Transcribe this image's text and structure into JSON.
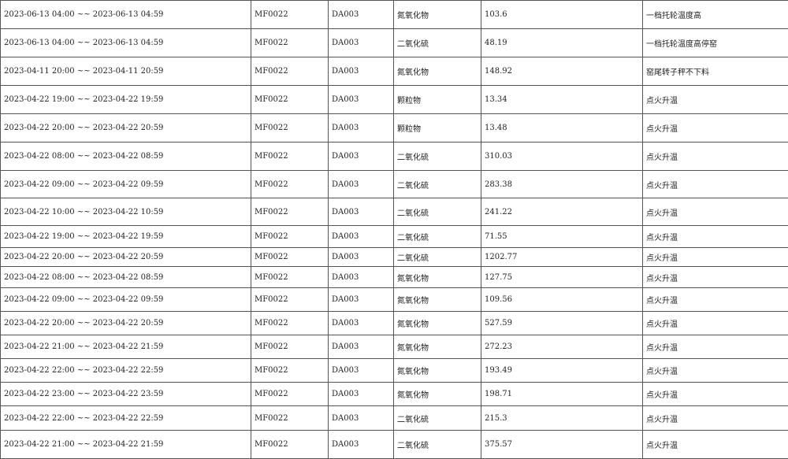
{
  "rows": [
    {
      "period": "2023-06-13 04:00 ~~ 2023-06-13 04:59",
      "code": "MF0022",
      "device": "DA003",
      "pollutant": "氮氧化物",
      "value": "103.6",
      "reason": "一档托轮温度高"
    },
    {
      "period": "2023-06-13 04:00 ~~ 2023-06-13 04:59",
      "code": "MF0022",
      "device": "DA003",
      "pollutant": "二氧化硫",
      "value": "48.19",
      "reason": "一档托轮温度高停窑"
    },
    {
      "period": "2023-04-11 20:00 ~~ 2023-04-11 20:59",
      "code": "MF0022",
      "device": "DA003",
      "pollutant": "氮氧化物",
      "value": "148.92",
      "reason": "窑尾转子秤不下料"
    },
    {
      "period": "2023-04-22 19:00 ~~ 2023-04-22 19:59",
      "code": "MF0022",
      "device": "DA003",
      "pollutant": "颗粒物",
      "value": "13.34",
      "reason": "点火升温"
    },
    {
      "period": "2023-04-22 20:00 ~~ 2023-04-22 20:59",
      "code": "MF0022",
      "device": "DA003",
      "pollutant": "颗粒物",
      "value": "13.48",
      "reason": "点火升温"
    },
    {
      "period": "2023-04-22 08:00 ~~ 2023-04-22 08:59",
      "code": "MF0022",
      "device": "DA003",
      "pollutant": "二氧化硫",
      "value": "310.03",
      "reason": "点火升温"
    },
    {
      "period": "2023-04-22 09:00 ~~ 2023-04-22 09:59",
      "code": "MF0022",
      "device": "DA003",
      "pollutant": "二氧化硫",
      "value": "283.38",
      "reason": "点火升温"
    },
    {
      "period": "2023-04-22 10:00 ~~ 2023-04-22 10:59",
      "code": "MF0022",
      "device": "DA003",
      "pollutant": "二氧化硫",
      "value": "241.22",
      "reason": "点火升温"
    },
    {
      "period": "2023-04-22 19:00 ~~ 2023-04-22 19:59",
      "code": "MF0022",
      "device": "DA003",
      "pollutant": "二氧化硫",
      "value": "71.55",
      "reason": "点火升温"
    },
    {
      "period": "2023-04-22 20:00 ~~ 2023-04-22 20:59",
      "code": "MF0022",
      "device": "DA003",
      "pollutant": "二氧化硫",
      "value": "1202.77",
      "reason": "点火升温"
    },
    {
      "period": "2023-04-22 08:00 ~~ 2023-04-22 08:59",
      "code": "MF0022",
      "device": "DA003",
      "pollutant": "氮氧化物",
      "value": "127.75",
      "reason": "点火升温"
    },
    {
      "period": "2023-04-22 09:00 ~~ 2023-04-22 09:59",
      "code": "MF0022",
      "device": "DA003",
      "pollutant": "氮氧化物",
      "value": "109.56",
      "reason": "点火升温"
    },
    {
      "period": "2023-04-22 20:00 ~~ 2023-04-22 20:59",
      "code": "MF0022",
      "device": "DA003",
      "pollutant": "氮氧化物",
      "value": "527.59",
      "reason": "点火升温"
    },
    {
      "period": "2023-04-22 21:00 ~~ 2023-04-22 21:59",
      "code": "MF0022",
      "device": "DA003",
      "pollutant": "氮氧化物",
      "value": "272.23",
      "reason": "点火升温"
    },
    {
      "period": "2023-04-22 22:00 ~~ 2023-04-22 22:59",
      "code": "MF0022",
      "device": "DA003",
      "pollutant": "氮氧化物",
      "value": "193.49",
      "reason": "点火升温"
    },
    {
      "period": "2023-04-22 23:00 ~~ 2023-04-22 23:59",
      "code": "MF0022",
      "device": "DA003",
      "pollutant": "氮氧化物",
      "value": "198.71",
      "reason": "点火升温"
    },
    {
      "period": "2023-04-22 22:00 ~~ 2023-04-22 22:59",
      "code": "MF0022",
      "device": "DA003",
      "pollutant": "二氧化硫",
      "value": "215.3",
      "reason": "点火升温"
    },
    {
      "period": "2023-04-22 21:00 ~~ 2023-04-22 21:59",
      "code": "MF0022",
      "device": "DA003",
      "pollutant": "二氧化硫",
      "value": "375.57",
      "reason": "点火升温"
    }
  ]
}
